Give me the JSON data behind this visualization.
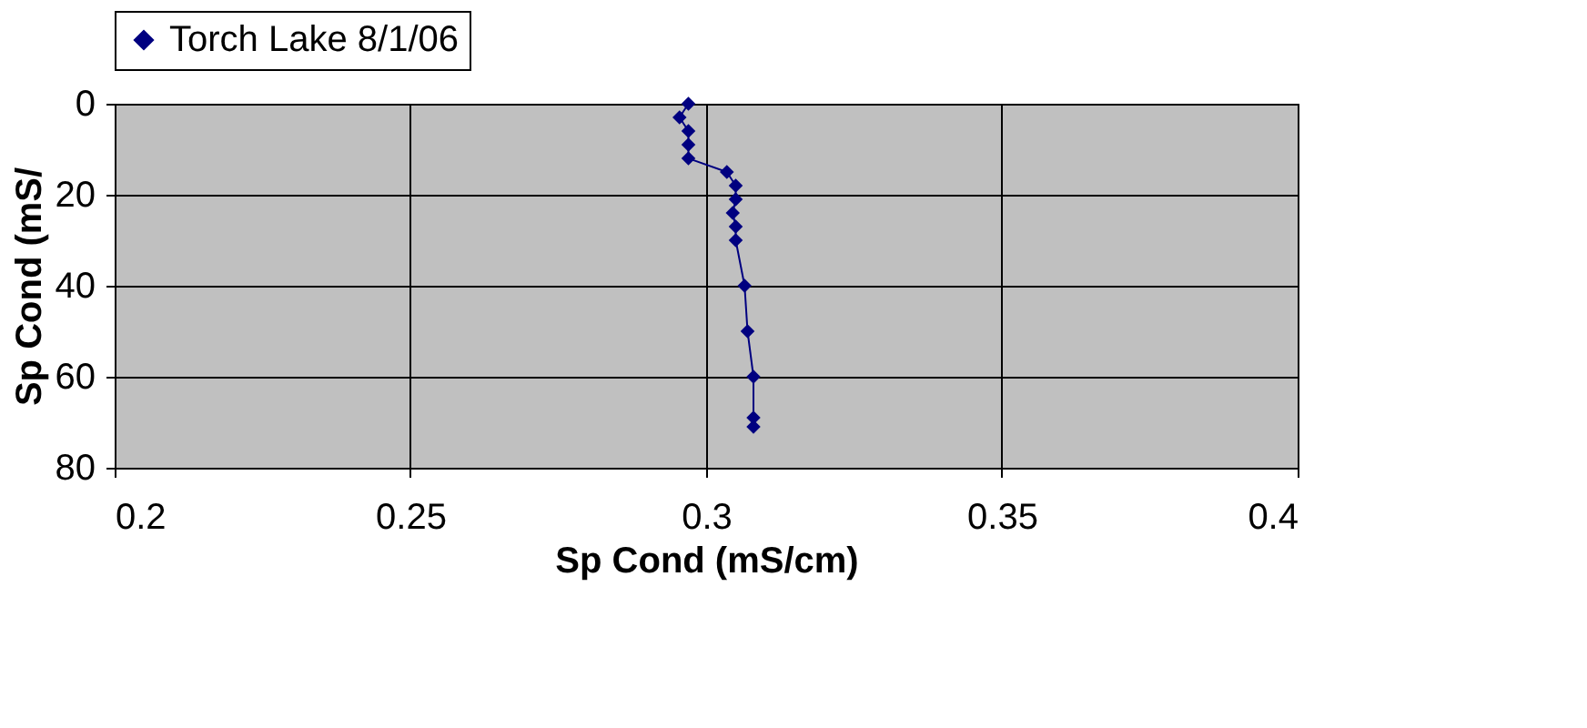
{
  "chart_data": {
    "type": "line",
    "xlabel": "Sp Cond (mS/cm)",
    "ylabel": "Sp Cond (mS/",
    "xlim": [
      0.2,
      0.4
    ],
    "xticks": [
      0.2,
      0.25,
      0.3,
      0.35,
      0.4
    ],
    "ylim": [
      80,
      0
    ],
    "yticks": [
      0,
      20,
      40,
      60,
      80
    ],
    "grid": true,
    "legend": "top",
    "marker": "diamond",
    "line_style": "solid",
    "series": [
      {
        "name": "Torch Lake 8/1/06",
        "color": "#000080",
        "x": [
          0.297,
          0.2955,
          0.297,
          0.297,
          0.297,
          0.3035,
          0.305,
          0.305,
          0.3045,
          0.305,
          0.305,
          0.3065,
          0.307,
          0.308,
          0.308,
          0.308
        ],
        "values": [
          0,
          3,
          6,
          9,
          12,
          15,
          18,
          21,
          24,
          27,
          30,
          40,
          50,
          60,
          69,
          71
        ]
      }
    ]
  }
}
